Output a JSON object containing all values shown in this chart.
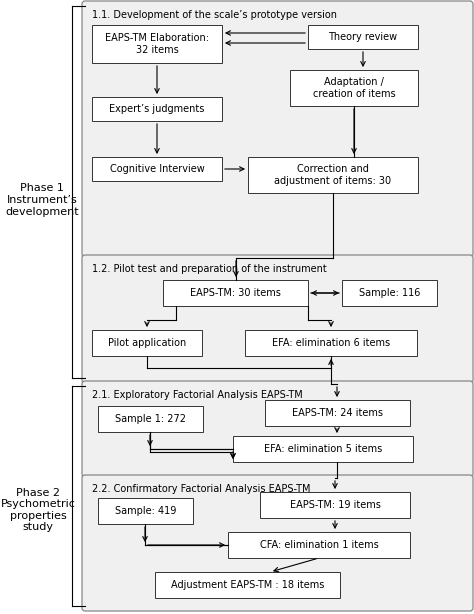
{
  "bg_color": "#ffffff",
  "text_color": "#000000",
  "phase1_label": "Phase 1\nInstrument’s\ndevelopment",
  "phase2_label": "Phase 2\nPsychometric\nproperties\nstudy",
  "section11_title": "1.1. Development of the scale’s prototype version",
  "section12_title": "1.2. Pilot test and preparation of the instrument",
  "section21_title": "2.1. Exploratory Factorial Analysis EAPS-TM",
  "section22_title": "2.2. Confirmatory Factorial Analysis EAPS-TM",
  "box_eaps32": "EAPS-TM Elaboration:\n32 items",
  "box_theory": "Theory review",
  "box_adaptation": "Adaptation /\ncreation of items",
  "box_experts": "Expert’s judgments",
  "box_cognitive": "Cognitive Interview",
  "box_correction": "Correction and\nadjustment of items: 30",
  "box_eaps30": "EAPS-TM: 30 items",
  "box_sample116": "Sample: 116",
  "box_pilot": "Pilot application",
  "box_efa6": "EFA: elimination 6 items",
  "box_sample272": "Sample 1: 272",
  "box_eaps24": "EAPS-TM: 24 items",
  "box_efa5": "EFA: elimination 5 items",
  "box_sample419": "Sample: 419",
  "box_eaps19": "EAPS-TM: 19 items",
  "box_cfa1": "CFA: elimination 1 items",
  "box_adjust18": "Adjustment EAPS-TM : 18 items"
}
